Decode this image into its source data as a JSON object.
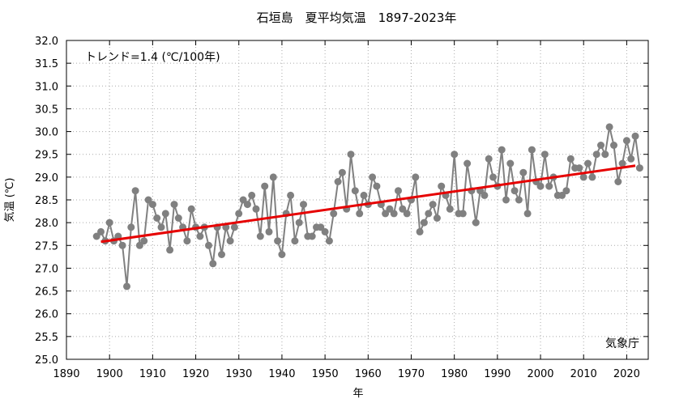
{
  "chart_data": {
    "type": "line",
    "title": "石垣島　夏平均気温　1897-2023年",
    "xlabel": "年",
    "ylabel": "気温 (℃)",
    "xlim": [
      1890,
      2025
    ],
    "ylim": [
      25.0,
      32.0
    ],
    "xticks": [
      1890,
      1900,
      1910,
      1920,
      1930,
      1940,
      1950,
      1960,
      1970,
      1980,
      1990,
      2000,
      2010,
      2020
    ],
    "yticks": [
      25.0,
      25.5,
      26.0,
      26.5,
      27.0,
      27.5,
      28.0,
      28.5,
      29.0,
      29.5,
      30.0,
      30.5,
      31.0,
      31.5,
      32.0
    ],
    "grid": true,
    "trend_annotation": "トレンド=1.4 (℃/100年)",
    "source_annotation": "気象庁",
    "colors": {
      "series": "#808080",
      "trend": "#e60000",
      "grid": "#aaaaaa"
    },
    "series": [
      {
        "x": [
          1897,
          1898,
          1899,
          1900,
          1901,
          1902,
          1903,
          1904,
          1905,
          1906,
          1907,
          1908,
          1909,
          1910,
          1911,
          1912,
          1913,
          1914,
          1915,
          1916,
          1917,
          1918,
          1919,
          1920,
          1921,
          1922,
          1923,
          1924,
          1925,
          1926,
          1927,
          1928,
          1929,
          1930,
          1931,
          1932,
          1933,
          1934,
          1935,
          1936,
          1937,
          1938,
          1939,
          1940,
          1941,
          1942,
          1943,
          1944,
          1945,
          1946,
          1947,
          1948,
          1949,
          1950,
          1951,
          1952,
          1953,
          1954,
          1955,
          1956,
          1957,
          1958,
          1959,
          1960,
          1961,
          1962,
          1963,
          1964,
          1965,
          1966,
          1967,
          1968,
          1969,
          1970,
          1971,
          1972,
          1973,
          1974,
          1975,
          1976,
          1977,
          1978,
          1979,
          1980,
          1981,
          1982,
          1983,
          1984,
          1985,
          1986,
          1987,
          1988,
          1989,
          1990,
          1991,
          1992,
          1993,
          1994,
          1995,
          1996,
          1997,
          1998,
          1999,
          2000,
          2001,
          2002,
          2003,
          2004,
          2005,
          2006,
          2007,
          2008,
          2009,
          2010,
          2011,
          2012,
          2013,
          2014,
          2015,
          2016,
          2017,
          2018,
          2019,
          2020,
          2021,
          2022,
          2023
        ],
        "values": [
          27.7,
          27.8,
          27.6,
          28.0,
          27.6,
          27.7,
          27.5,
          26.6,
          27.9,
          28.7,
          27.5,
          27.6,
          28.5,
          28.4,
          28.1,
          27.9,
          28.2,
          27.4,
          28.4,
          28.1,
          27.9,
          27.6,
          28.3,
          27.9,
          27.7,
          27.9,
          27.5,
          27.1,
          27.9,
          27.3,
          27.9,
          27.6,
          27.9,
          28.2,
          28.5,
          28.4,
          28.6,
          28.3,
          27.7,
          28.8,
          27.8,
          29.0,
          27.6,
          27.3,
          28.2,
          28.6,
          27.6,
          28.0,
          28.4,
          27.7,
          27.7,
          27.9,
          27.9,
          27.8,
          27.6,
          28.2,
          28.9,
          29.1,
          28.3,
          29.5,
          28.7,
          28.2,
          28.6,
          28.4,
          29.0,
          28.8,
          28.4,
          28.2,
          28.3,
          28.2,
          28.7,
          28.3,
          28.2,
          28.5,
          29.0,
          27.8,
          28.0,
          28.2,
          28.4,
          28.1,
          28.8,
          28.6,
          28.3,
          29.5,
          28.2,
          28.2,
          29.3,
          28.7,
          28.0,
          28.7,
          28.6,
          29.4,
          29.0,
          28.8,
          29.6,
          28.5,
          29.3,
          28.7,
          28.5,
          29.1,
          28.2,
          29.6,
          28.9,
          28.8,
          29.5,
          28.8,
          29.0,
          28.6,
          28.6,
          28.7,
          29.4,
          29.2,
          29.2,
          29.0,
          29.3,
          29.0,
          29.5,
          29.7,
          29.5,
          30.1,
          29.7,
          28.9,
          29.3,
          29.8,
          29.4,
          29.9,
          29.2
        ]
      }
    ],
    "trend": {
      "x": [
        1898,
        2022
      ],
      "values": [
        27.58,
        29.25
      ]
    }
  }
}
